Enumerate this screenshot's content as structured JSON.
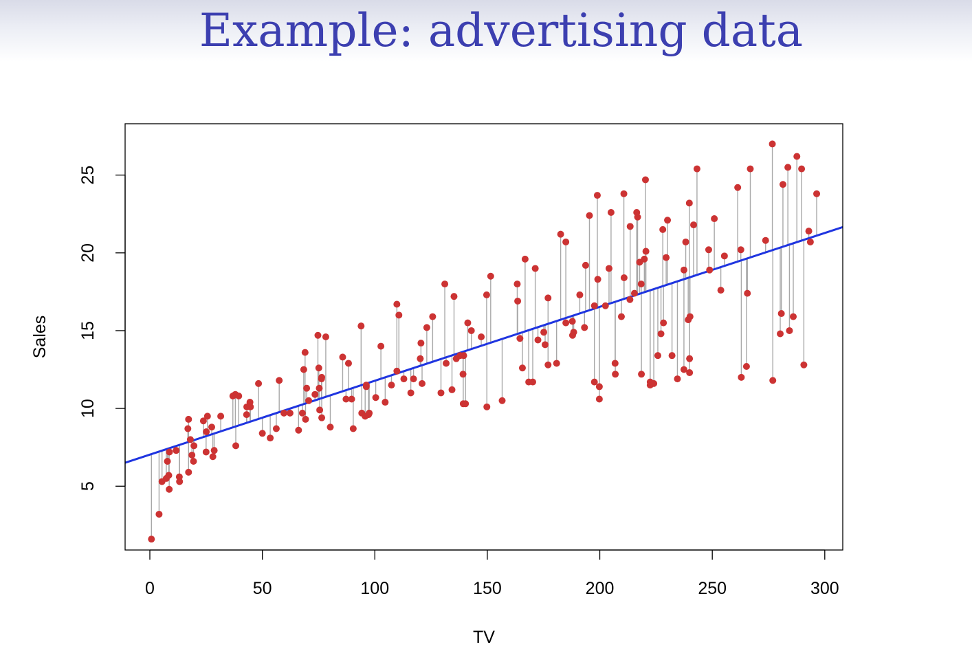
{
  "slide": {
    "title": "Example: advertising data"
  },
  "colors": {
    "title": "#3c3fb0",
    "points": "#cc3333",
    "fit_line": "#1f35e0",
    "residuals": "#a8a8a8",
    "axes": "#000000"
  },
  "chart_data": {
    "type": "scatter",
    "title": "",
    "xlabel": "TV",
    "ylabel": "Sales",
    "xlim": [
      -11,
      308
    ],
    "ylim": [
      0.9,
      28.3
    ],
    "x_ticks": [
      0,
      50,
      100,
      150,
      200,
      250,
      300
    ],
    "y_ticks": [
      5,
      10,
      15,
      20,
      25
    ],
    "grid": false,
    "legend": "none",
    "fit_line": {
      "intercept": 7.03,
      "slope": 0.0475
    },
    "residual_segments": true,
    "points": [
      [
        0.7,
        1.6
      ],
      [
        4.1,
        3.2
      ],
      [
        5.4,
        5.3
      ],
      [
        7.3,
        5.5
      ],
      [
        7.8,
        6.6
      ],
      [
        8.4,
        5.7
      ],
      [
        8.6,
        4.8
      ],
      [
        8.7,
        7.2
      ],
      [
        11.7,
        7.3
      ],
      [
        13.1,
        5.6
      ],
      [
        13.2,
        5.3
      ],
      [
        16.9,
        8.7
      ],
      [
        17.2,
        5.9
      ],
      [
        17.2,
        9.3
      ],
      [
        18.0,
        8.0
      ],
      [
        18.7,
        7.0
      ],
      [
        19.4,
        6.6
      ],
      [
        19.6,
        7.6
      ],
      [
        23.8,
        9.2
      ],
      [
        25.0,
        7.2
      ],
      [
        25.1,
        8.5
      ],
      [
        25.6,
        9.5
      ],
      [
        27.5,
        8.8
      ],
      [
        28.0,
        6.9
      ],
      [
        28.6,
        7.3
      ],
      [
        31.5,
        9.5
      ],
      [
        36.9,
        10.8
      ],
      [
        38.0,
        10.9
      ],
      [
        38.2,
        7.6
      ],
      [
        39.5,
        10.8
      ],
      [
        43.0,
        9.6
      ],
      [
        43.1,
        10.1
      ],
      [
        44.5,
        10.4
      ],
      [
        44.7,
        10.1
      ],
      [
        48.3,
        11.6
      ],
      [
        50.0,
        8.4
      ],
      [
        53.5,
        8.1
      ],
      [
        56.2,
        8.7
      ],
      [
        57.5,
        11.8
      ],
      [
        59.6,
        9.7
      ],
      [
        62.3,
        9.7
      ],
      [
        66.1,
        8.6
      ],
      [
        67.8,
        9.7
      ],
      [
        68.4,
        12.5
      ],
      [
        69.0,
        13.6
      ],
      [
        69.2,
        9.3
      ],
      [
        69.7,
        11.3
      ],
      [
        70.6,
        10.5
      ],
      [
        73.4,
        10.9
      ],
      [
        74.7,
        14.7
      ],
      [
        75.1,
        12.6
      ],
      [
        75.3,
        11.3
      ],
      [
        75.5,
        9.9
      ],
      [
        76.3,
        11.9
      ],
      [
        76.4,
        12.0
      ],
      [
        76.4,
        9.4
      ],
      [
        78.2,
        14.6
      ],
      [
        80.2,
        8.8
      ],
      [
        85.7,
        13.3
      ],
      [
        87.2,
        10.6
      ],
      [
        88.3,
        12.9
      ],
      [
        89.7,
        10.6
      ],
      [
        90.4,
        8.7
      ],
      [
        93.9,
        15.3
      ],
      [
        94.2,
        9.7
      ],
      [
        95.7,
        9.5
      ],
      [
        96.2,
        11.4
      ],
      [
        96.2,
        11.5
      ],
      [
        97.2,
        9.6
      ],
      [
        97.5,
        9.7
      ],
      [
        100.4,
        10.7
      ],
      [
        102.7,
        14.0
      ],
      [
        104.6,
        10.4
      ],
      [
        107.4,
        11.5
      ],
      [
        109.8,
        12.4
      ],
      [
        109.8,
        16.7
      ],
      [
        110.7,
        16.0
      ],
      [
        112.9,
        11.9
      ],
      [
        116.0,
        11.0
      ],
      [
        117.2,
        11.9
      ],
      [
        120.2,
        13.2
      ],
      [
        120.5,
        14.2
      ],
      [
        121.0,
        11.6
      ],
      [
        123.1,
        15.2
      ],
      [
        125.7,
        15.9
      ],
      [
        129.4,
        11.0
      ],
      [
        131.1,
        18.0
      ],
      [
        131.7,
        12.9
      ],
      [
        134.3,
        11.2
      ],
      [
        135.2,
        17.2
      ],
      [
        136.2,
        13.2
      ],
      [
        137.9,
        13.4
      ],
      [
        139.2,
        12.2
      ],
      [
        139.3,
        10.3
      ],
      [
        139.5,
        13.4
      ],
      [
        140.3,
        10.3
      ],
      [
        141.3,
        15.5
      ],
      [
        142.9,
        15.0
      ],
      [
        147.3,
        14.6
      ],
      [
        149.7,
        17.3
      ],
      [
        149.8,
        10.1
      ],
      [
        151.5,
        18.5
      ],
      [
        156.6,
        10.5
      ],
      [
        163.3,
        18.0
      ],
      [
        163.5,
        16.9
      ],
      [
        164.5,
        14.5
      ],
      [
        165.6,
        12.6
      ],
      [
        166.8,
        19.6
      ],
      [
        168.4,
        11.7
      ],
      [
        170.2,
        11.7
      ],
      [
        171.3,
        19.0
      ],
      [
        172.5,
        14.4
      ],
      [
        175.1,
        14.9
      ],
      [
        175.7,
        14.1
      ],
      [
        177.0,
        12.8
      ],
      [
        177.0,
        17.1
      ],
      [
        180.8,
        12.9
      ],
      [
        182.6,
        21.2
      ],
      [
        184.9,
        20.7
      ],
      [
        184.9,
        15.5
      ],
      [
        187.8,
        15.6
      ],
      [
        187.9,
        14.7
      ],
      [
        188.4,
        14.9
      ],
      [
        191.1,
        17.3
      ],
      [
        193.2,
        15.2
      ],
      [
        193.7,
        19.2
      ],
      [
        195.4,
        22.4
      ],
      [
        197.6,
        11.7
      ],
      [
        197.6,
        16.6
      ],
      [
        198.9,
        23.7
      ],
      [
        199.1,
        18.3
      ],
      [
        199.8,
        11.4
      ],
      [
        199.8,
        10.6
      ],
      [
        202.5,
        16.6
      ],
      [
        204.1,
        19.0
      ],
      [
        205.0,
        22.6
      ],
      [
        206.8,
        12.9
      ],
      [
        206.9,
        12.2
      ],
      [
        209.6,
        15.9
      ],
      [
        210.7,
        23.8
      ],
      [
        210.8,
        18.4
      ],
      [
        213.4,
        17.0
      ],
      [
        213.5,
        21.7
      ],
      [
        215.4,
        17.4
      ],
      [
        216.4,
        22.6
      ],
      [
        216.8,
        22.3
      ],
      [
        217.7,
        19.4
      ],
      [
        218.4,
        18.0
      ],
      [
        218.5,
        12.2
      ],
      [
        219.8,
        19.6
      ],
      [
        220.3,
        24.7
      ],
      [
        220.5,
        20.1
      ],
      [
        222.4,
        11.5
      ],
      [
        222.4,
        11.7
      ],
      [
        224.0,
        11.6
      ],
      [
        225.8,
        13.4
      ],
      [
        227.2,
        14.8
      ],
      [
        228.0,
        21.5
      ],
      [
        228.3,
        15.5
      ],
      [
        229.5,
        19.7
      ],
      [
        230.1,
        22.1
      ],
      [
        232.1,
        13.4
      ],
      [
        234.5,
        11.9
      ],
      [
        237.4,
        18.9
      ],
      [
        237.4,
        12.5
      ],
      [
        238.2,
        20.7
      ],
      [
        239.3,
        15.7
      ],
      [
        239.8,
        23.2
      ],
      [
        239.9,
        13.2
      ],
      [
        239.9,
        12.3
      ],
      [
        240.1,
        15.9
      ],
      [
        241.7,
        21.8
      ],
      [
        243.2,
        25.4
      ],
      [
        248.4,
        20.2
      ],
      [
        248.8,
        18.9
      ],
      [
        250.9,
        22.2
      ],
      [
        253.8,
        17.6
      ],
      [
        255.4,
        19.8
      ],
      [
        261.3,
        24.2
      ],
      [
        262.7,
        20.2
      ],
      [
        262.9,
        12.0
      ],
      [
        265.2,
        12.7
      ],
      [
        265.6,
        17.4
      ],
      [
        266.9,
        25.4
      ],
      [
        273.7,
        20.8
      ],
      [
        276.7,
        27.0
      ],
      [
        276.9,
        11.8
      ],
      [
        280.2,
        14.8
      ],
      [
        280.7,
        16.1
      ],
      [
        281.4,
        24.4
      ],
      [
        283.6,
        25.5
      ],
      [
        284.3,
        15.0
      ],
      [
        286.0,
        15.9
      ],
      [
        287.6,
        26.2
      ],
      [
        289.7,
        25.4
      ],
      [
        290.7,
        12.8
      ],
      [
        292.9,
        21.4
      ],
      [
        293.6,
        20.7
      ],
      [
        296.4,
        23.8
      ]
    ]
  }
}
